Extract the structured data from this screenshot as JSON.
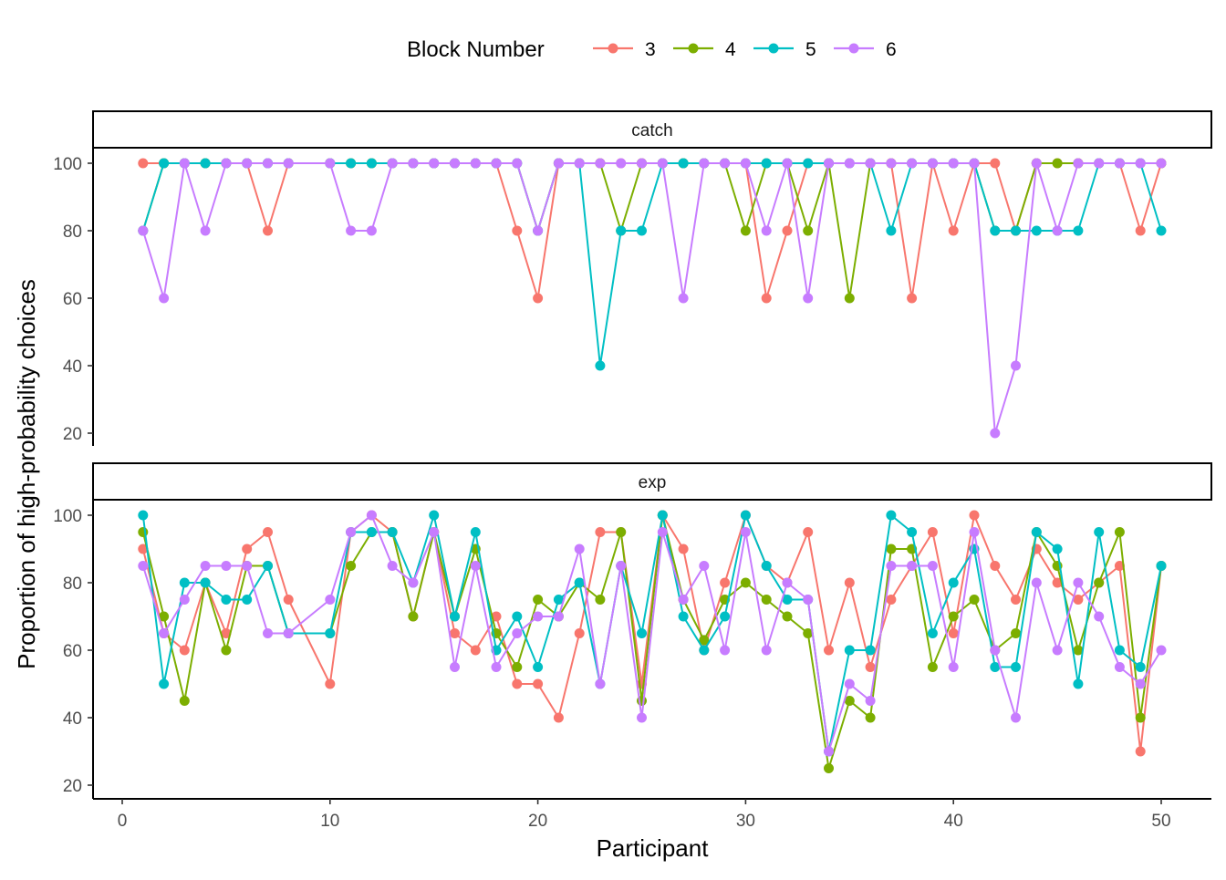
{
  "chart_data": {
    "type": "line",
    "legend": {
      "title": "Block Number",
      "position": "top",
      "entries": [
        {
          "label": "3",
          "color": "#F8766D"
        },
        {
          "label": "4",
          "color": "#7CAE00"
        },
        {
          "label": "5",
          "color": "#00BFC4"
        },
        {
          "label": "6",
          "color": "#C77CFF"
        }
      ]
    },
    "xlabel": "Participant",
    "ylabel": "Proportion of high-probability choices",
    "xlim": [
      0,
      50
    ],
    "ylim": [
      20,
      100
    ],
    "xticks": [
      "0",
      "10",
      "20",
      "30",
      "40",
      "50"
    ],
    "yticks": [
      "20",
      "40",
      "60",
      "80",
      "100"
    ],
    "x": [
      1,
      2,
      3,
      4,
      5,
      6,
      7,
      8,
      10,
      11,
      12,
      13,
      14,
      15,
      16,
      17,
      18,
      19,
      20,
      21,
      22,
      23,
      24,
      25,
      26,
      27,
      28,
      29,
      30,
      31,
      32,
      33,
      34,
      35,
      36,
      37,
      38,
      39,
      40,
      41,
      42,
      43,
      44,
      45,
      46,
      47,
      48,
      49,
      50
    ],
    "panels": [
      {
        "label": "catch",
        "series": [
          {
            "name": "3",
            "color": "#F8766D",
            "values": [
              100,
              100,
              100,
              100,
              100,
              100,
              80,
              100,
              100,
              100,
              100,
              100,
              100,
              100,
              100,
              100,
              100,
              80,
              60,
              100,
              100,
              100,
              100,
              100,
              100,
              100,
              100,
              100,
              100,
              60,
              80,
              100,
              100,
              100,
              100,
              100,
              60,
              100,
              80,
              100,
              100,
              80,
              100,
              100,
              100,
              100,
              100,
              80,
              100
            ]
          },
          {
            "name": "4",
            "color": "#7CAE00",
            "values": [
              80,
              100,
              100,
              100,
              100,
              100,
              100,
              100,
              100,
              100,
              100,
              100,
              100,
              100,
              100,
              100,
              100,
              100,
              80,
              100,
              100,
              100,
              80,
              100,
              100,
              100,
              100,
              100,
              80,
              100,
              100,
              80,
              100,
              60,
              100,
              100,
              100,
              100,
              100,
              100,
              80,
              80,
              100,
              100,
              100,
              100,
              100,
              100,
              100
            ]
          },
          {
            "name": "5",
            "color": "#00BFC4",
            "values": [
              80,
              100,
              100,
              100,
              100,
              100,
              100,
              100,
              100,
              100,
              100,
              100,
              100,
              100,
              100,
              100,
              100,
              100,
              80,
              100,
              100,
              40,
              80,
              80,
              100,
              100,
              100,
              100,
              100,
              100,
              100,
              100,
              100,
              100,
              100,
              80,
              100,
              100,
              100,
              100,
              80,
              80,
              80,
              80,
              80,
              100,
              100,
              100,
              80
            ]
          },
          {
            "name": "6",
            "color": "#C77CFF",
            "values": [
              80,
              60,
              100,
              80,
              100,
              100,
              100,
              100,
              100,
              80,
              80,
              100,
              100,
              100,
              100,
              100,
              100,
              100,
              80,
              100,
              100,
              100,
              100,
              100,
              100,
              60,
              100,
              100,
              100,
              80,
              100,
              60,
              100,
              100,
              100,
              100,
              100,
              100,
              100,
              100,
              20,
              40,
              100,
              80,
              100,
              100,
              100,
              100,
              100
            ]
          }
        ]
      },
      {
        "label": "exp",
        "series": [
          {
            "name": "3",
            "color": "#F8766D",
            "values": [
              90,
              65,
              60,
              80,
              65,
              90,
              95,
              75,
              50,
              95,
              100,
              95,
              70,
              95,
              65,
              60,
              70,
              50,
              50,
              40,
              65,
              95,
              95,
              50,
              100,
              90,
              60,
              80,
              100,
              85,
              80,
              95,
              60,
              80,
              55,
              75,
              85,
              95,
              65,
              100,
              85,
              75,
              90,
              80,
              75,
              80,
              85,
              30,
              85
            ]
          },
          {
            "name": "4",
            "color": "#7CAE00",
            "values": [
              95,
              70,
              45,
              80,
              60,
              85,
              85,
              65,
              65,
              85,
              95,
              95,
              70,
              95,
              70,
              90,
              65,
              55,
              75,
              70,
              80,
              75,
              95,
              45,
              100,
              75,
              63,
              75,
              80,
              75,
              70,
              65,
              25,
              45,
              40,
              90,
              90,
              55,
              70,
              75,
              60,
              65,
              95,
              85,
              60,
              80,
              95,
              40,
              85
            ]
          },
          {
            "name": "5",
            "color": "#00BFC4",
            "values": [
              100,
              50,
              80,
              80,
              75,
              75,
              85,
              65,
              65,
              95,
              95,
              95,
              80,
              100,
              70,
              95,
              60,
              70,
              55,
              75,
              80,
              50,
              85,
              65,
              100,
              70,
              60,
              70,
              100,
              85,
              75,
              75,
              30,
              60,
              60,
              100,
              95,
              65,
              80,
              90,
              55,
              55,
              95,
              90,
              50,
              95,
              60,
              55,
              85
            ]
          },
          {
            "name": "6",
            "color": "#C77CFF",
            "values": [
              85,
              65,
              75,
              85,
              85,
              85,
              65,
              65,
              75,
              95,
              100,
              85,
              80,
              95,
              55,
              85,
              55,
              65,
              70,
              70,
              90,
              50,
              85,
              40,
              95,
              75,
              85,
              60,
              95,
              60,
              80,
              75,
              30,
              50,
              45,
              85,
              85,
              85,
              55,
              95,
              60,
              40,
              80,
              60,
              80,
              70,
              55,
              50,
              60
            ]
          }
        ]
      }
    ]
  }
}
